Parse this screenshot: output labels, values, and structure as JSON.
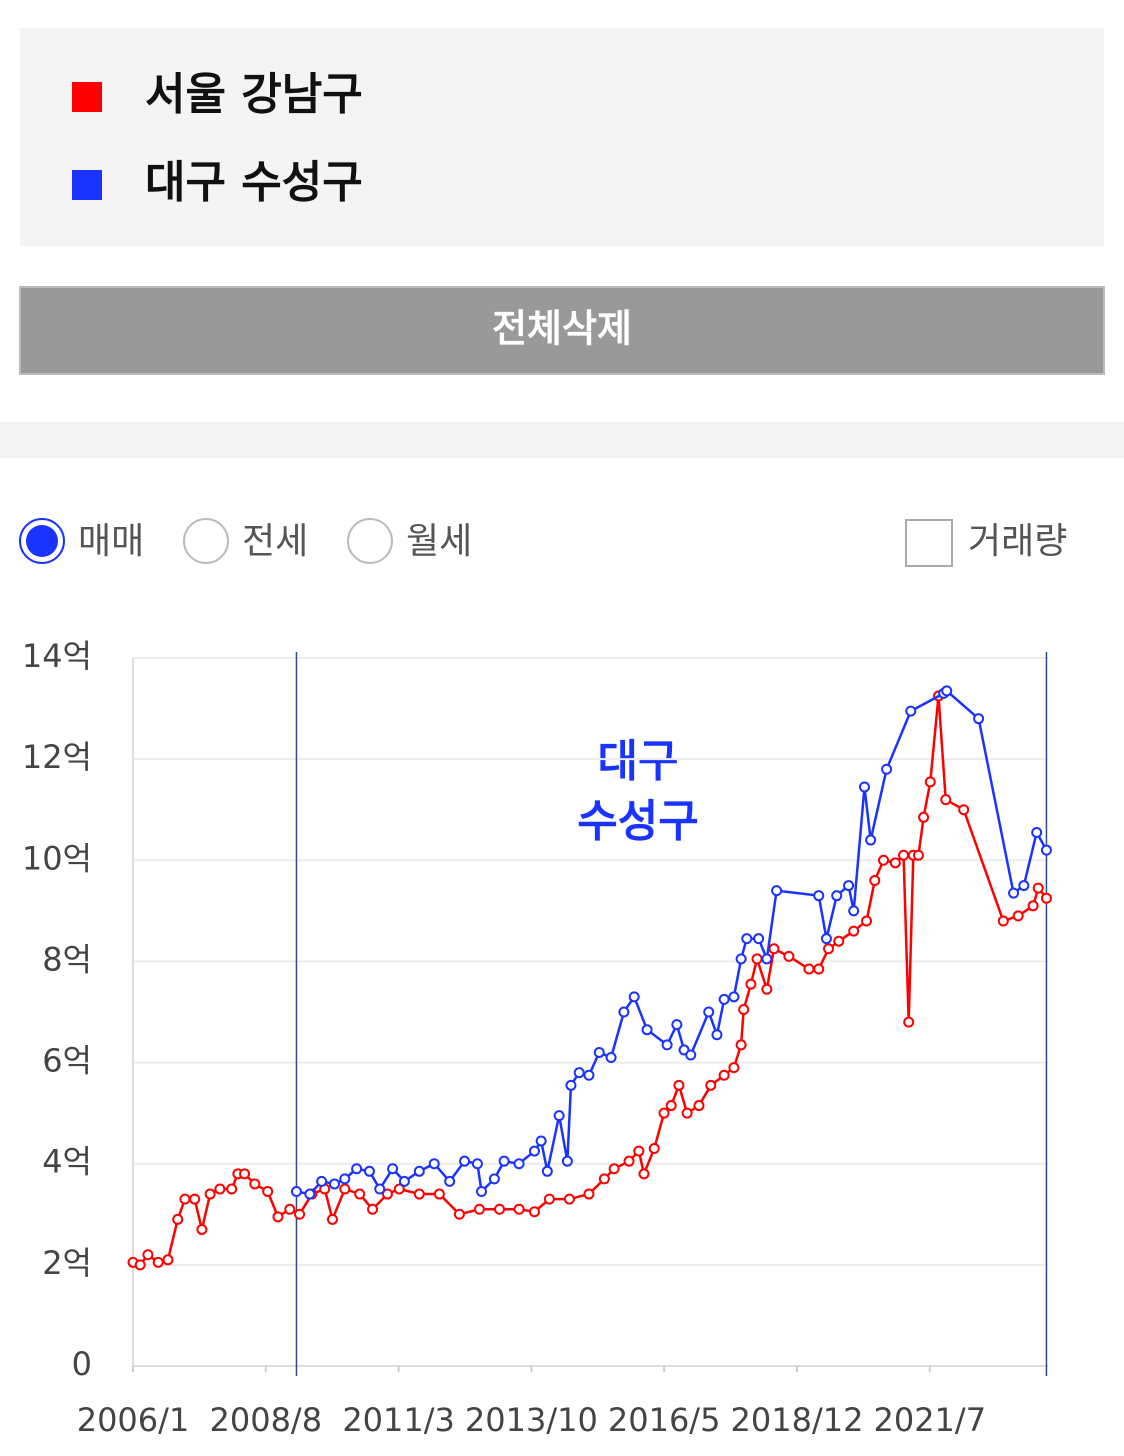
{
  "button": "전체삭제",
  "options": [
    "매매",
    "전세",
    "월세"
  ],
  "selected_option": 0,
  "checkbox": "거래량",
  "chart_data": {
    "type": "line",
    "annotation_lines": [
      "대구",
      "수성구"
    ],
    "xlim": [
      2006.0,
      2023.8
    ],
    "xticks": [
      {
        "value": 2006.0,
        "label": "2006/1"
      },
      {
        "value": 2008.583,
        "label": "2008/8"
      },
      {
        "value": 2011.167,
        "label": "2011/3"
      },
      {
        "value": 2013.75,
        "label": "2013/10"
      },
      {
        "value": 2016.333,
        "label": "2016/5"
      },
      {
        "value": 2018.917,
        "label": "2018/12"
      },
      {
        "value": 2021.5,
        "label": "2021/7"
      }
    ],
    "ylim": [
      0,
      14
    ],
    "yticks": [
      0,
      {
        "value": 2,
        "label": "2억"
      },
      {
        "value": 4,
        "label": "4억"
      },
      {
        "value": 6,
        "label": "6억"
      },
      {
        "value": 8,
        "label": "8억"
      },
      {
        "value": 10,
        "label": "10억"
      },
      {
        "value": 12,
        "label": "12억"
      },
      {
        "value": 14,
        "label": "14억"
      }
    ],
    "grid": true,
    "series": [
      {
        "name": "서울 강남구",
        "color": "#ff0000",
        "x": [
          2006.0,
          2006.14,
          2006.29,
          2006.49,
          2006.68,
          2006.87,
          2007.01,
          2007.2,
          2007.34,
          2007.5,
          2007.69,
          2007.92,
          2008.04,
          2008.17,
          2008.37,
          2008.62,
          2008.82,
          2009.05,
          2009.24,
          2009.48,
          2009.73,
          2009.88,
          2010.12,
          2010.41,
          2010.66,
          2010.95,
          2011.18,
          2011.57,
          2011.96,
          2012.35,
          2012.74,
          2013.13,
          2013.51,
          2013.81,
          2014.1,
          2014.49,
          2014.87,
          2015.17,
          2015.36,
          2015.65,
          2015.84,
          2015.94,
          2016.14,
          2016.33,
          2016.47,
          2016.62,
          2016.78,
          2017.01,
          2017.24,
          2017.5,
          2017.69,
          2017.83,
          2017.88,
          2018.02,
          2018.14,
          2018.33,
          2018.47,
          2018.76,
          2019.15,
          2019.34,
          2019.53,
          2019.73,
          2020.02,
          2020.27,
          2020.43,
          2020.6,
          2020.83,
          2020.99,
          2021.09,
          2021.18,
          2021.28,
          2021.38,
          2021.51,
          2021.67,
          2021.81,
          2022.16,
          2022.93,
          2023.22,
          2023.51,
          2023.61,
          2023.77
        ],
        "values": [
          2.05,
          2.0,
          2.2,
          2.05,
          2.1,
          2.9,
          3.3,
          3.3,
          2.7,
          3.4,
          3.5,
          3.5,
          3.8,
          3.8,
          3.6,
          3.45,
          2.95,
          3.1,
          3.0,
          3.4,
          3.5,
          2.9,
          3.5,
          3.4,
          3.1,
          3.4,
          3.5,
          3.4,
          3.4,
          3.0,
          3.1,
          3.1,
          3.1,
          3.05,
          3.3,
          3.3,
          3.4,
          3.7,
          3.9,
          4.05,
          4.25,
          3.8,
          4.3,
          5.0,
          5.15,
          5.55,
          5.0,
          5.15,
          5.55,
          5.75,
          5.9,
          6.35,
          7.05,
          7.55,
          8.05,
          7.45,
          8.25,
          8.1,
          7.85,
          7.85,
          8.25,
          8.4,
          8.6,
          8.8,
          9.6,
          10.0,
          9.95,
          10.1,
          6.8,
          10.1,
          10.1,
          10.85,
          11.55,
          13.25,
          11.2,
          11.0,
          8.8,
          8.9,
          9.1,
          9.45,
          9.25
        ]
      },
      {
        "name": "대구 수성구",
        "color": "#1a33ff",
        "x": [
          2009.18,
          2009.44,
          2009.67,
          2009.92,
          2010.12,
          2010.35,
          2010.6,
          2010.8,
          2011.05,
          2011.28,
          2011.57,
          2011.86,
          2012.16,
          2012.45,
          2012.7,
          2012.78,
          2013.03,
          2013.22,
          2013.51,
          2013.81,
          2013.94,
          2014.06,
          2014.29,
          2014.45,
          2014.52,
          2014.68,
          2014.87,
          2015.07,
          2015.3,
          2015.55,
          2015.75,
          2016.0,
          2016.39,
          2016.58,
          2016.72,
          2016.85,
          2017.2,
          2017.36,
          2017.5,
          2017.69,
          2017.83,
          2017.94,
          2018.17,
          2018.33,
          2018.52,
          2019.34,
          2019.49,
          2019.69,
          2019.92,
          2020.02,
          2020.23,
          2020.35,
          2020.66,
          2021.13,
          2021.77,
          2021.83,
          2022.45,
          2023.13,
          2023.33,
          2023.58,
          2023.77
        ],
        "values": [
          3.45,
          3.4,
          3.65,
          3.6,
          3.7,
          3.9,
          3.85,
          3.5,
          3.9,
          3.65,
          3.85,
          4.0,
          3.65,
          4.05,
          4.0,
          3.45,
          3.7,
          4.05,
          4.0,
          4.25,
          4.45,
          3.85,
          4.95,
          4.05,
          5.55,
          5.8,
          5.75,
          6.2,
          6.1,
          7.0,
          7.3,
          6.65,
          6.35,
          6.75,
          6.25,
          6.15,
          7.0,
          6.55,
          7.25,
          7.3,
          8.05,
          8.45,
          8.45,
          8.05,
          9.4,
          9.3,
          8.45,
          9.3,
          9.5,
          9.0,
          11.45,
          10.4,
          11.8,
          12.95,
          13.3,
          13.35,
          12.8,
          9.35,
          9.5,
          10.55,
          10.2
        ]
      }
    ]
  }
}
